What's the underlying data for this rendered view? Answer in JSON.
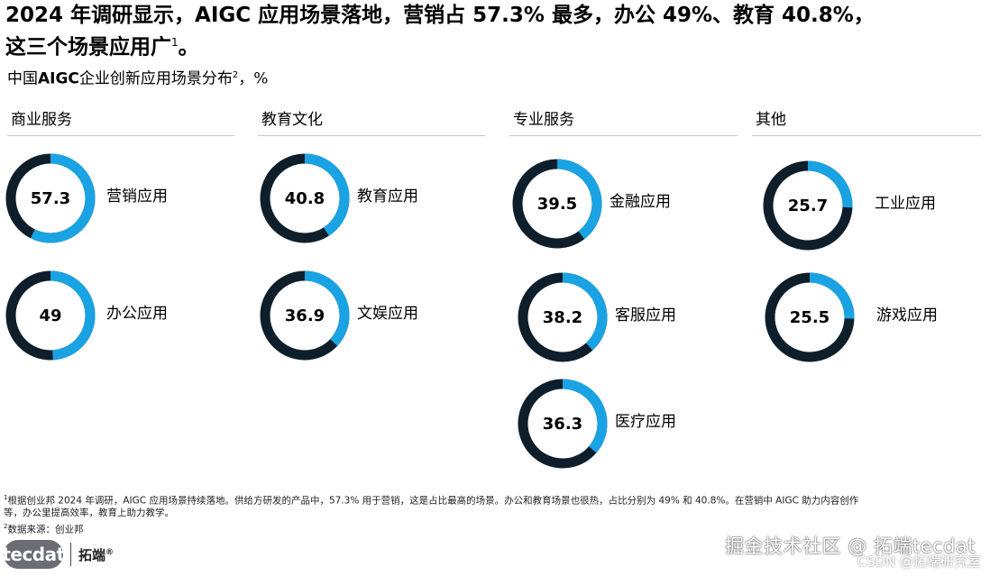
{
  "headline": {
    "line1": "2024 年调研显示，AIGC 应用场景落地，营销占 57.3% 最多，办公 49%、教育 40.8%，",
    "line2": "这三个场景应用广",
    "sup": "1",
    "tail": "。"
  },
  "subtitle": {
    "prefix": "中国",
    "bold": "AIGC",
    "rest": "企业创新应用场景分布",
    "sup": "2",
    "unit": "，%"
  },
  "colors": {
    "fill": "#1aa3e3",
    "ring": "#0e1e2b"
  },
  "chart_data": {
    "type": "donut",
    "unit": "%",
    "max": 100,
    "groups": [
      {
        "category": "商业服务",
        "items": [
          {
            "label": "营销应用",
            "value": 57.3,
            "value_text": "57.3"
          },
          {
            "label": "办公应用",
            "value": 49,
            "value_text": "49"
          }
        ]
      },
      {
        "category": "教育文化",
        "items": [
          {
            "label": "教育应用",
            "value": 40.8,
            "value_text": "40.8"
          },
          {
            "label": "文娱应用",
            "value": 36.9,
            "value_text": "36.9"
          }
        ]
      },
      {
        "category": "专业服务",
        "items": [
          {
            "label": "金融应用",
            "value": 39.5,
            "value_text": "39.5"
          },
          {
            "label": "客服应用",
            "value": 38.2,
            "value_text": "38.2"
          },
          {
            "label": "医疗应用",
            "value": 36.3,
            "value_text": "36.3"
          }
        ]
      },
      {
        "category": "其他",
        "items": [
          {
            "label": "工业应用",
            "value": 25.7,
            "value_text": "25.7"
          },
          {
            "label": "游戏应用",
            "value": 25.5,
            "value_text": "25.5"
          }
        ]
      }
    ]
  },
  "footnotes": {
    "note1_sup": "1",
    "note1": "根据创业邦 2024 年调研，AIGC 应用场景持续落地。供给方研发的产品中，57.3% 用于营销，这是占比最高的场景。办公和教育场景也很热，占比分别为 49% 和 40.8%。在营销中 AIGC 助力内容创作",
    "note1_cont": "等，办公里提高效率，教育上助力教学。",
    "note2_sup": "2",
    "note2": "数据来源：创业邦"
  },
  "logo": {
    "en": "tecdat",
    "cn": "拓端",
    "mark": "®"
  },
  "watermark": {
    "main": "掘金技术社区 @ 拓端tecdat",
    "sub": "CSDN @拓端研究室"
  }
}
